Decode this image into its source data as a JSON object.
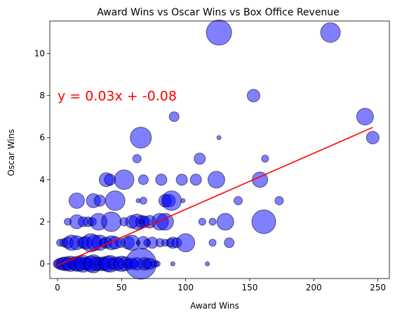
{
  "chart_data": {
    "type": "scatter",
    "title": "Award Wins vs Oscar Wins vs Box Office Revenue",
    "xlabel": "Award Wins",
    "ylabel": "Oscar Wins",
    "xlim": [
      -6,
      259
    ],
    "ylim": [
      -0.7,
      11.55
    ],
    "xticks": [
      0,
      50,
      100,
      150,
      200,
      250
    ],
    "yticks": [
      0,
      2,
      4,
      6,
      8,
      10
    ],
    "grid": false,
    "marker_color": "#0000ff",
    "marker_edge_color": "#000000",
    "marker_alpha": 0.5,
    "regression": {
      "equation": "y = 0.03x + -0.08",
      "slope": 0.0267,
      "intercept": -0.08,
      "x_range": [
        0,
        246
      ],
      "color": "#ff0000",
      "annotation_at": [
        0,
        8
      ]
    },
    "points": [
      [
        126,
        11,
        18
      ],
      [
        213,
        11,
        14
      ],
      [
        240,
        7,
        12
      ],
      [
        246,
        6,
        9
      ],
      [
        153,
        8,
        9
      ],
      [
        91,
        7,
        7
      ],
      [
        65,
        6,
        15
      ],
      [
        126,
        6,
        3
      ],
      [
        62,
        5,
        6
      ],
      [
        111,
        5,
        8
      ],
      [
        162,
        5,
        5
      ],
      [
        38,
        4,
        10
      ],
      [
        41,
        4,
        8
      ],
      [
        52,
        4,
        14
      ],
      [
        67,
        4,
        7
      ],
      [
        81,
        4,
        8
      ],
      [
        97,
        4,
        8
      ],
      [
        108,
        4,
        8
      ],
      [
        124,
        4,
        12
      ],
      [
        158,
        4,
        11
      ],
      [
        15,
        3,
        11
      ],
      [
        28,
        3,
        10
      ],
      [
        33,
        3,
        8
      ],
      [
        45,
        3,
        14
      ],
      [
        67,
        3,
        5
      ],
      [
        84,
        3,
        9
      ],
      [
        87,
        3,
        9
      ],
      [
        89,
        3,
        14
      ],
      [
        98,
        3,
        3
      ],
      [
        141,
        3,
        6
      ],
      [
        173,
        3,
        6
      ],
      [
        63,
        3,
        3
      ],
      [
        8,
        2,
        5
      ],
      [
        15,
        2,
        10
      ],
      [
        20,
        2,
        7
      ],
      [
        24,
        2,
        7
      ],
      [
        27,
        2,
        6
      ],
      [
        32,
        2,
        12
      ],
      [
        42,
        2,
        14
      ],
      [
        52,
        2,
        6
      ],
      [
        58,
        2,
        9
      ],
      [
        62,
        2,
        11
      ],
      [
        66,
        2,
        9
      ],
      [
        68,
        2,
        8
      ],
      [
        72,
        2,
        9
      ],
      [
        80,
        2,
        12
      ],
      [
        84,
        2,
        12
      ],
      [
        113,
        2,
        5
      ],
      [
        121,
        2,
        5
      ],
      [
        131,
        2,
        12
      ],
      [
        161,
        2,
        17
      ],
      [
        65,
        2,
        3
      ],
      [
        5,
        1,
        6
      ],
      [
        8,
        1,
        8
      ],
      [
        11,
        1,
        11
      ],
      [
        15,
        1,
        10
      ],
      [
        20,
        1,
        8
      ],
      [
        22,
        1,
        9
      ],
      [
        26,
        1,
        13
      ],
      [
        29,
        1,
        11
      ],
      [
        33,
        1,
        11
      ],
      [
        36,
        1,
        6
      ],
      [
        38,
        1,
        8
      ],
      [
        42,
        1,
        10
      ],
      [
        45,
        1,
        9
      ],
      [
        49,
        1,
        7
      ],
      [
        55,
        1,
        9
      ],
      [
        58,
        1,
        11
      ],
      [
        63,
        1,
        3
      ],
      [
        67,
        1,
        9
      ],
      [
        70,
        1,
        5
      ],
      [
        74,
        1,
        8
      ],
      [
        80,
        1,
        6
      ],
      [
        84,
        1,
        5
      ],
      [
        88,
        1,
        6
      ],
      [
        90,
        1,
        8
      ],
      [
        93,
        1,
        7
      ],
      [
        100,
        1,
        13
      ],
      [
        121,
        1,
        5
      ],
      [
        134,
        1,
        7
      ],
      [
        2,
        1,
        5
      ],
      [
        0,
        0,
        6
      ],
      [
        2,
        0,
        8
      ],
      [
        4,
        0,
        9
      ],
      [
        6,
        0,
        10
      ],
      [
        8,
        0,
        9
      ],
      [
        10,
        0,
        11
      ],
      [
        12,
        0,
        8
      ],
      [
        14,
        0,
        10
      ],
      [
        16,
        0,
        11
      ],
      [
        18,
        0,
        9
      ],
      [
        20,
        0,
        12
      ],
      [
        22,
        0,
        9
      ],
      [
        24,
        0,
        8
      ],
      [
        26,
        0,
        11
      ],
      [
        28,
        0,
        13
      ],
      [
        30,
        0,
        10
      ],
      [
        32,
        0,
        9
      ],
      [
        35,
        0,
        10
      ],
      [
        37,
        0,
        9
      ],
      [
        39,
        0,
        11
      ],
      [
        41,
        0,
        12
      ],
      [
        43,
        0,
        8
      ],
      [
        46,
        0,
        10
      ],
      [
        48,
        0,
        8
      ],
      [
        50,
        0,
        11
      ],
      [
        53,
        0,
        10
      ],
      [
        55,
        0,
        7
      ],
      [
        58,
        0,
        8
      ],
      [
        60,
        0,
        6
      ],
      [
        62,
        0,
        9
      ],
      [
        65,
        0,
        22
      ],
      [
        68,
        0,
        9
      ],
      [
        70,
        0,
        7
      ],
      [
        72,
        0,
        8
      ],
      [
        76,
        0,
        5
      ],
      [
        78,
        0,
        4
      ],
      [
        90,
        0,
        3
      ],
      [
        117,
        0,
        3
      ]
    ]
  }
}
